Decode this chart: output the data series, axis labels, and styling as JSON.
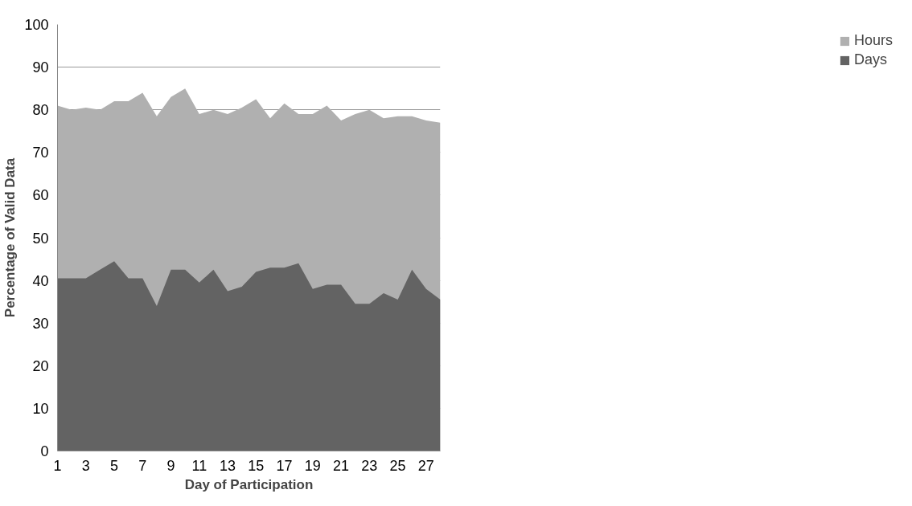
{
  "chart_data": {
    "type": "area",
    "xlabel": "Day of Participation",
    "ylabel": "Percentage of Valid Data",
    "x": [
      1,
      2,
      3,
      4,
      5,
      6,
      7,
      8,
      9,
      10,
      11,
      12,
      13,
      14,
      15,
      16,
      17,
      18,
      19,
      20,
      21,
      22,
      23,
      24,
      25,
      26,
      27,
      28
    ],
    "series": [
      {
        "name": "Hours",
        "color": "#b0b0b0",
        "values": [
          81,
          80,
          80.5,
          80,
          82,
          82,
          84,
          78.5,
          83,
          85,
          79,
          80,
          79,
          80.5,
          82.5,
          78,
          81.5,
          79,
          79,
          81,
          77.5,
          79,
          80,
          78,
          78.5,
          78.5,
          77.5,
          77
        ]
      },
      {
        "name": "Days",
        "color": "#636363",
        "values": [
          40.5,
          40.5,
          40.5,
          42.5,
          44.5,
          40.5,
          40.5,
          34,
          42.5,
          42.5,
          39.5,
          42.5,
          37.5,
          38.5,
          42,
          43,
          43,
          44,
          38,
          39,
          39,
          34.5,
          34.5,
          37,
          35.5,
          42.5,
          38,
          35.5
        ]
      }
    ],
    "xlim": [
      1,
      28
    ],
    "xticks": [
      1,
      3,
      5,
      7,
      9,
      11,
      13,
      15,
      17,
      19,
      21,
      23,
      25,
      27
    ],
    "ylim": [
      0,
      100
    ],
    "yticks": [
      0,
      10,
      20,
      30,
      40,
      50,
      60,
      70,
      80,
      90,
      100
    ],
    "grid": "y",
    "legend": "right"
  }
}
